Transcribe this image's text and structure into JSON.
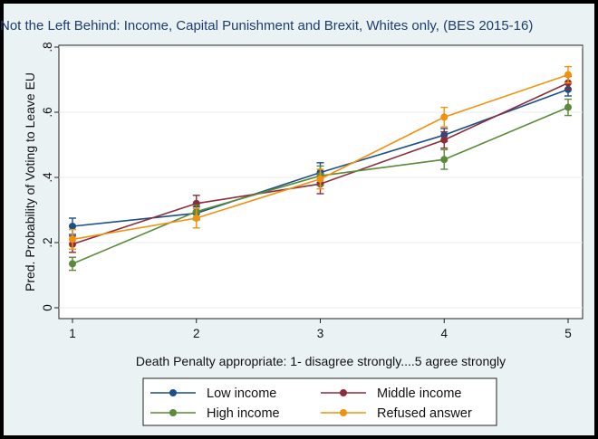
{
  "chart_data": {
    "type": "line",
    "title": "Not the Left Behind: Income, Capital Punishment and Brexit, Whites only, (BES 2015-16)",
    "xlabel": "Death Penalty appropriate: 1- disagree strongly....5 agree strongly",
    "ylabel": "Pred. Probability of Voting to Leave EU",
    "x": [
      1,
      2,
      3,
      4,
      5
    ],
    "xticks": [
      "1",
      "2",
      "3",
      "4",
      "5"
    ],
    "yticks": [
      0,
      0.2,
      0.4,
      0.6,
      0.8
    ],
    "ytick_labels": [
      "0",
      ".2",
      ".4",
      ".6",
      ".8"
    ],
    "ylim": [
      0,
      0.8
    ],
    "xlim": [
      1,
      5
    ],
    "grid": true,
    "error_bars": true,
    "legend_position": "bottom",
    "series": [
      {
        "name": "Low income",
        "color": "#1a4f8a",
        "values": [
          0.25,
          0.29,
          0.415,
          0.53,
          0.67
        ],
        "ci_low": [
          0.225,
          0.27,
          0.385,
          0.51,
          0.65
        ],
        "ci_high": [
          0.275,
          0.31,
          0.445,
          0.55,
          0.69
        ]
      },
      {
        "name": "Middle income",
        "color": "#8c2d3a",
        "values": [
          0.195,
          0.32,
          0.38,
          0.515,
          0.69
        ],
        "ci_low": [
          0.17,
          0.295,
          0.35,
          0.49,
          0.67
        ],
        "ci_high": [
          0.22,
          0.345,
          0.41,
          0.54,
          0.71
        ]
      },
      {
        "name": "High income",
        "color": "#5a8a3a",
        "values": [
          0.135,
          0.295,
          0.405,
          0.455,
          0.615
        ],
        "ci_low": [
          0.115,
          0.275,
          0.375,
          0.425,
          0.59
        ],
        "ci_high": [
          0.155,
          0.315,
          0.435,
          0.485,
          0.64
        ]
      },
      {
        "name": "Refused answer",
        "color": "#f0920f",
        "values": [
          0.21,
          0.275,
          0.395,
          0.585,
          0.715
        ],
        "ci_low": [
          0.18,
          0.245,
          0.365,
          0.555,
          0.69
        ],
        "ci_high": [
          0.24,
          0.305,
          0.425,
          0.615,
          0.74
        ]
      }
    ]
  }
}
